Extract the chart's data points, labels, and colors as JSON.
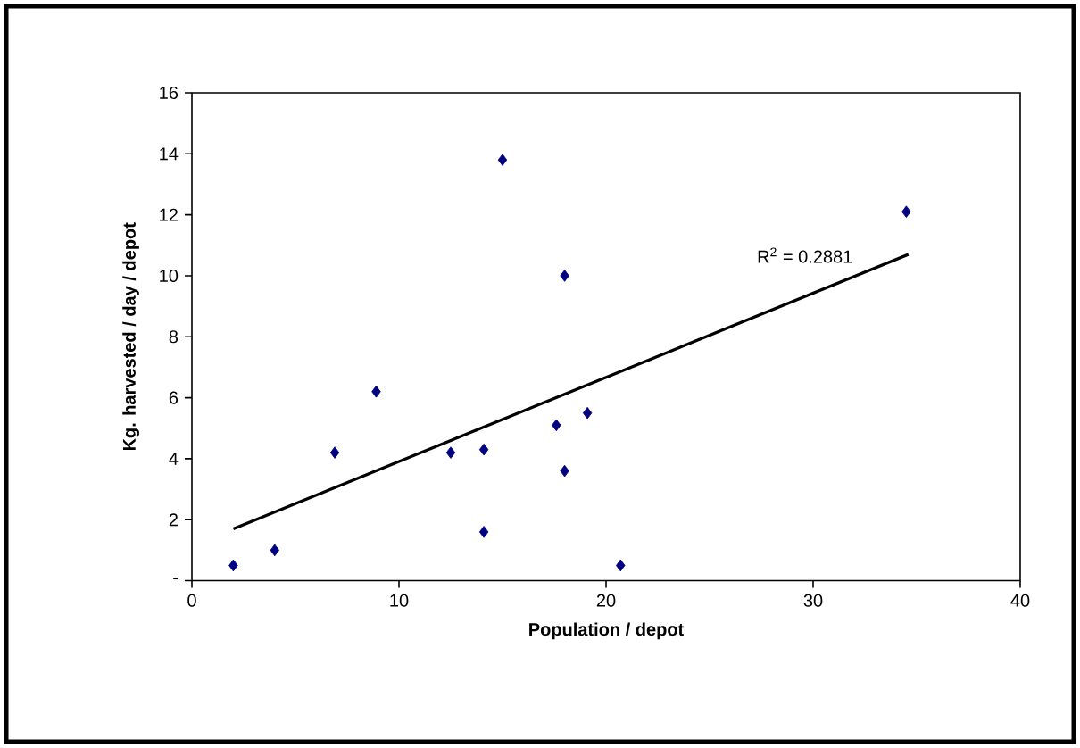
{
  "chart_data": {
    "type": "scatter",
    "xlabel": "Population / depot",
    "ylabel": "Kg. harvested / day / depot",
    "xlim": [
      0,
      40
    ],
    "xticks": [
      0,
      10,
      20,
      30,
      40
    ],
    "ylim": [
      0,
      16
    ],
    "yticks": [
      {
        "value": 0,
        "label": "-"
      },
      2,
      4,
      6,
      8,
      10,
      12,
      14,
      16
    ],
    "grid": false,
    "series": [
      {
        "color": "#000080",
        "marker": "diamond",
        "x": [
          2.0,
          4.0,
          6.9,
          8.9,
          15.0,
          18.0,
          12.5,
          14.1,
          14.1,
          17.6,
          19.1,
          18.0,
          20.7,
          34.5
        ],
        "values": [
          0.5,
          1.0,
          4.2,
          6.2,
          13.8,
          10.0,
          4.2,
          4.3,
          1.6,
          5.1,
          5.5,
          3.6,
          0.5,
          12.1
        ]
      },
      {
        "type": "line",
        "color": "#000000",
        "marker": "none",
        "line_style": "solid",
        "x": [
          2.0,
          34.6
        ],
        "values": [
          1.7,
          10.7
        ]
      }
    ],
    "annotations": [
      "R$^{2}$ = 0.2881"
    ]
  }
}
